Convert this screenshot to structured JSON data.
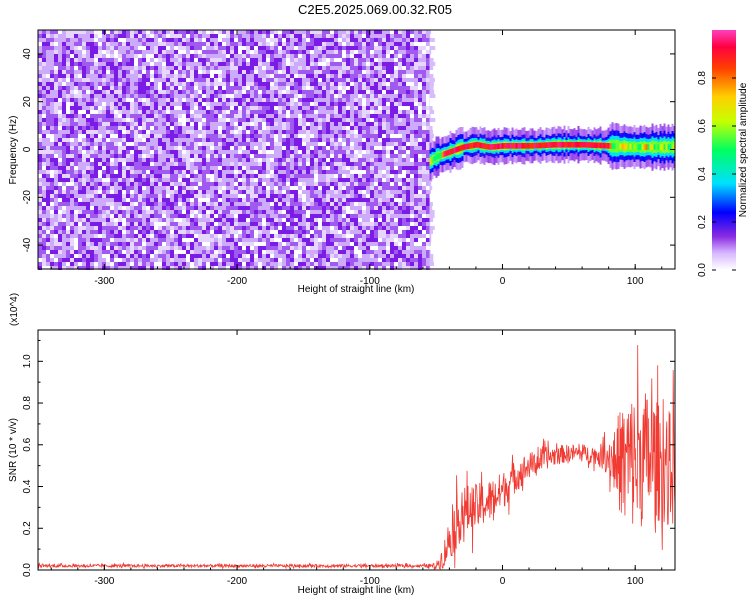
{
  "title": "C2E5.2025.069.00.32.R05",
  "colors": {
    "spectrogram_noise": "#7a1be6",
    "snr_line": "#f03a32",
    "axis": "#000000"
  },
  "chart_data": [
    {
      "type": "heatmap",
      "title": "C2E5.2025.069.00.32.R05",
      "xlabel": "Height of straight line (km)",
      "ylabel": "Frequency (Hz)",
      "xlim": [
        -350,
        130
      ],
      "ylim": [
        -50,
        50
      ],
      "x_ticks": [
        -300,
        -200,
        -100,
        0,
        100
      ],
      "x_tick_labels": [
        "-300",
        "-200",
        "-100",
        "0",
        "100"
      ],
      "y_ticks": [
        40,
        20,
        0,
        -20,
        -40
      ],
      "y_tick_labels": [
        "40",
        "20",
        "0",
        "-20",
        "-40"
      ],
      "colorbar": {
        "label": "Normalized spectral amplitude",
        "range": [
          0,
          1
        ],
        "ticks": [
          0.0,
          0.2,
          0.4,
          0.6,
          0.8
        ],
        "tick_labels": [
          "0.0",
          "0.2",
          "0.4",
          "0.6",
          "0.8"
        ],
        "colormap": "rainbow (white, violet, blue, cyan, green, yellow, orange, red, magenta)"
      },
      "regions": [
        {
          "description": "broadband noise",
          "x_range": [
            -350,
            -55
          ],
          "freq_range": [
            -50,
            50
          ],
          "amplitude": 0.1
        },
        {
          "description": "narrow carrier signal",
          "x_range": [
            -55,
            130
          ],
          "freq_center": 1.5,
          "freq_width": 6,
          "amplitude_peak": 0.9
        }
      ],
      "carrier_track": {
        "x": [
          -55,
          -50,
          -45,
          -40,
          -30,
          -20,
          -10,
          0,
          20,
          40,
          60,
          80,
          100,
          130
        ],
        "freq": [
          -5,
          -3,
          -2,
          -1,
          1,
          2,
          1,
          1.5,
          1.5,
          2,
          2,
          1.5,
          1,
          1
        ]
      }
    },
    {
      "type": "line",
      "xlabel": "Height of straight line (km)",
      "ylabel": "SNR (10 * v/v)",
      "y_multiplier": "(x10^4)",
      "xlim": [
        -350,
        130
      ],
      "ylim": [
        0,
        1.15
      ],
      "x_ticks": [
        -300,
        -200,
        -100,
        0,
        100
      ],
      "x_tick_labels": [
        "-300",
        "-200",
        "-100",
        "0",
        "100"
      ],
      "y_ticks": [
        0.0,
        0.2,
        0.4,
        0.6,
        0.8,
        1.0
      ],
      "y_tick_labels": [
        "0.0",
        "0.2",
        "0.4",
        "0.6",
        "0.8",
        "1.0"
      ],
      "series": [
        {
          "x": [
            -350,
            -300,
            -250,
            -200,
            -150,
            -100,
            -60,
            -50,
            -45,
            -40,
            -35,
            -30,
            -20,
            -10,
            0,
            10,
            20,
            30,
            40,
            50,
            60,
            70,
            80,
            90,
            100,
            110,
            120,
            130
          ],
          "mean": [
            0.02,
            0.02,
            0.02,
            0.02,
            0.02,
            0.02,
            0.02,
            0.02,
            0.06,
            0.15,
            0.22,
            0.28,
            0.3,
            0.33,
            0.38,
            0.45,
            0.5,
            0.53,
            0.55,
            0.56,
            0.56,
            0.55,
            0.54,
            0.52,
            0.52,
            0.55,
            0.5,
            0.48
          ],
          "spread": [
            0.01,
            0.01,
            0.01,
            0.01,
            0.01,
            0.01,
            0.01,
            0.02,
            0.08,
            0.15,
            0.18,
            0.18,
            0.16,
            0.15,
            0.13,
            0.11,
            0.09,
            0.08,
            0.07,
            0.06,
            0.06,
            0.06,
            0.12,
            0.4,
            0.5,
            0.45,
            0.4,
            0.4
          ]
        }
      ]
    }
  ]
}
